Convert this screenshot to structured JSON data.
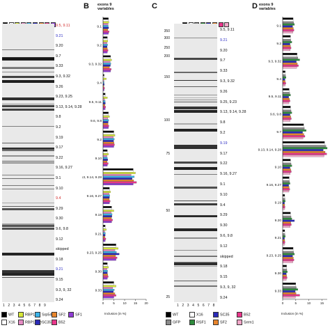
{
  "panels": {
    "A_letter": "",
    "B_letter": "B",
    "C_letter": "C",
    "D_letter": "D"
  },
  "colors": {
    "WT": "#000000",
    "X16": "#ffffff",
    "RBP1": "#d7e83a",
    "RBP1-like": "#e58cc4",
    "Srp54": "#3bb3e8",
    "SC35": "#2a2ab8",
    "SF2": "#e8852c",
    "B52": "#e8358a",
    "SF1": "#8f3cd4",
    "GFP": "#8a8a8a",
    "RSF1": "#2e8b3c",
    "Srrm1": "#f2a6c8"
  },
  "panelA": {
    "lane_numbers": "1 2 3 4 5 6 7 8 9",
    "header_labels": [
      "WT",
      "X16",
      "RBP1",
      "RBP1-like",
      "Srp54",
      "SC35",
      "SF2",
      "B52",
      "SF1"
    ],
    "exon_labels": [
      {
        "text": "9.5, 9.11",
        "color": "red"
      },
      {
        "text": "9.21",
        "color": "blue"
      },
      {
        "text": "9.20",
        "color": "black"
      },
      {
        "text": "9.7",
        "color": "black"
      },
      {
        "text": "9.33",
        "color": "black"
      },
      {
        "text": "9.3, 9.32",
        "color": "black"
      },
      {
        "text": "9.26",
        "color": "black"
      },
      {
        "text": "9.23, 9.25",
        "color": "black"
      },
      {
        "text": "9.13, 9.14, 9.28",
        "color": "black"
      },
      {
        "text": "9.8",
        "color": "black"
      },
      {
        "text": "9.2",
        "color": "black"
      },
      {
        "text": "9.19",
        "color": "black"
      },
      {
        "text": "9.17",
        "color": "black"
      },
      {
        "text": "9.22",
        "color": "black"
      },
      {
        "text": "9.16, 9.27",
        "color": "black"
      },
      {
        "text": "9.1",
        "color": "black"
      },
      {
        "text": "9.10",
        "color": "black"
      },
      {
        "text": "9.4",
        "color": "red"
      },
      {
        "text": "9.29",
        "color": "black"
      },
      {
        "text": "9.30",
        "color": "black"
      },
      {
        "text": "9.6, 9.8",
        "color": "black"
      },
      {
        "text": "9.12",
        "color": "black"
      },
      {
        "text": "skipped",
        "color": "black"
      },
      {
        "text": "9.18",
        "color": "black"
      },
      {
        "text": "9.21",
        "color": "blue"
      },
      {
        "text": "9.15",
        "color": "black"
      },
      {
        "text": "9.3, 9, 32",
        "color": "black"
      },
      {
        "text": "9.24",
        "color": "black"
      }
    ]
  },
  "panelB": {
    "header": "exons 9\nvariables",
    "row_labels": [
      "9.1",
      "9.2",
      "9.3, 9.32",
      "9.4",
      "9.5, 9.11",
      "9.6, 9.8",
      "9.2",
      "9.10",
      "9.13, 9.14, 9.28",
      "9.16, 9.27",
      "9.18",
      "9.21",
      "9.23, 9.25",
      "9.30",
      "9.33"
    ],
    "axis_title": "Inclusion (in %)",
    "ticks": [
      "0",
      "5",
      "10",
      "15",
      "20"
    ]
  },
  "panelC": {
    "lane_numbers": "1 2 3 4 5 6 7 8",
    "header_labels": [
      "M",
      "WT",
      "X16",
      "GFP",
      "RSF1",
      "SC35",
      "SF2",
      "B52",
      "Srrm1"
    ],
    "mw_markers": [
      "350",
      "300",
      "250",
      "200",
      "150",
      "100",
      "75",
      "50",
      "25"
    ],
    "exon_labels": [
      {
        "text": "9.5, 9.11",
        "color": "black"
      },
      {
        "text": "9.21",
        "color": "blue"
      },
      {
        "text": "9.20",
        "color": "black"
      },
      {
        "text": "9.7",
        "color": "black"
      },
      {
        "text": "9.33",
        "color": "black"
      },
      {
        "text": "9.3, 9.32",
        "color": "black"
      },
      {
        "text": "9.26",
        "color": "black"
      },
      {
        "text": "9.25, 9.23",
        "color": "black"
      },
      {
        "text": "9.13, 9.14, 9.28",
        "color": "black"
      },
      {
        "text": "9.8",
        "color": "black"
      },
      {
        "text": "9.2",
        "color": "black"
      },
      {
        "text": "9.19",
        "color": "blue"
      },
      {
        "text": "9.17",
        "color": "black"
      },
      {
        "text": "9.22",
        "color": "black"
      },
      {
        "text": "9.16, 9.27",
        "color": "black"
      },
      {
        "text": "9.1",
        "color": "black"
      },
      {
        "text": "9.10",
        "color": "black"
      },
      {
        "text": "9.4",
        "color": "black"
      },
      {
        "text": "9.29",
        "color": "black"
      },
      {
        "text": "9.30",
        "color": "black"
      },
      {
        "text": "9.6, 9.8",
        "color": "black"
      },
      {
        "text": "9.12",
        "color": "black"
      },
      {
        "text": "skipped",
        "color": "black"
      },
      {
        "text": "9.18",
        "color": "black"
      },
      {
        "text": "9.15",
        "color": "black"
      },
      {
        "text": "9.3, 9, 32",
        "color": "black"
      },
      {
        "text": "9.24",
        "color": "black"
      }
    ]
  },
  "panelD": {
    "header": "exons 9\nvariables",
    "row_labels": [
      "9.1",
      "9.2",
      "9.3, 9.32",
      "9.4",
      "9.5, 9.11",
      "9.6, 9.8",
      "9.7",
      "9.13, 9.14, 9.28",
      "9.10",
      "9.16, 9.27",
      "9.19",
      "9.20",
      "9.21",
      "9.23, 9.25",
      "9.30",
      "9.33"
    ],
    "axis_title": "Inclusion (in %)",
    "ticks": [
      "0",
      "5",
      "10",
      "15"
    ]
  },
  "legendA": [
    {
      "name": "WT",
      "color": "#000000"
    },
    {
      "name": "RBP1",
      "color": "#d7e83a"
    },
    {
      "name": "Srp54",
      "color": "#3bb3e8"
    },
    {
      "name": "SF2",
      "color": "#e8852c"
    },
    {
      "name": "SF1",
      "color": "#8f3cd4"
    },
    {
      "name": "X16",
      "color": "#ffffff"
    },
    {
      "name": "RBP1-like",
      "color": "#e58cc4"
    },
    {
      "name": "SC35",
      "color": "#2a2ab8"
    },
    {
      "name": "B52",
      "color": "#e8358a"
    }
  ],
  "legendC": [
    {
      "name": "WT",
      "color": "#000000"
    },
    {
      "name": "X16",
      "color": "#ffffff"
    },
    {
      "name": "SC35",
      "color": "#2a2ab8"
    },
    {
      "name": "B52",
      "color": "#e8358a"
    },
    {
      "name": "GFP",
      "color": "#8a8a8a"
    },
    {
      "name": "RSF1",
      "color": "#2e8b3c"
    },
    {
      "name": "SF2",
      "color": "#e8852c"
    },
    {
      "name": "Srrm1",
      "color": "#f2a6c8"
    }
  ],
  "chart_data": [
    {
      "type": "bar",
      "title": "",
      "xlabel": "Inclusion (in %)",
      "ylabel": "exons 9 variables",
      "xlim": [
        0,
        20
      ],
      "categories": [
        "9.1",
        "9.2",
        "9.3, 9.32",
        "9.4",
        "9.5, 9.11",
        "9.6, 9.8",
        "9.2",
        "9.10",
        "9.13, 9.14, 9.28",
        "9.16, 9.27",
        "9.18",
        "9.21",
        "9.23, 9.25",
        "9.30",
        "9.33"
      ],
      "series": [
        {
          "name": "WT",
          "values": [
            2.5,
            2,
            3.5,
            0.5,
            1,
            2.5,
            5,
            2,
            14,
            3,
            4,
            1,
            6,
            2,
            5
          ]
        },
        {
          "name": "X16",
          "values": [
            2.5,
            2,
            3.5,
            0.5,
            1,
            2.5,
            5,
            2,
            14,
            3,
            4,
            1,
            6,
            2,
            5
          ]
        },
        {
          "name": "RBP1",
          "values": [
            2.7,
            2.2,
            4,
            1.5,
            2,
            3,
            5.5,
            2.5,
            15,
            3.5,
            5,
            1.5,
            7,
            2.5,
            6
          ]
        },
        {
          "name": "RBP1-like",
          "values": [
            2.3,
            1.8,
            3.3,
            0.4,
            0.8,
            2.2,
            4.8,
            1.8,
            13,
            2.8,
            3.8,
            0.8,
            5.5,
            1.8,
            4.5
          ]
        },
        {
          "name": "Srp54",
          "values": [
            2.4,
            2.1,
            3.6,
            0.5,
            1,
            2.6,
            5.2,
            2,
            14.5,
            3.1,
            4.2,
            1.1,
            6.2,
            2.1,
            5.2
          ]
        },
        {
          "name": "SC35",
          "values": [
            2.6,
            1.9,
            3.4,
            0.6,
            1.1,
            2.4,
            4.9,
            2.2,
            13.5,
            3,
            4.1,
            1,
            7.5,
            2,
            4.8
          ]
        },
        {
          "name": "SF2",
          "values": [
            2.2,
            2,
            3,
            0.4,
            0.9,
            2.3,
            5.1,
            1.9,
            14.2,
            2.9,
            3.9,
            0.9,
            5.8,
            2.2,
            5.5
          ]
        },
        {
          "name": "B52",
          "values": [
            2.8,
            2.3,
            3.8,
            0.7,
            1.2,
            2.7,
            5.3,
            2.4,
            15.5,
            3.3,
            4.4,
            1.3,
            6.5,
            2.4,
            6
          ]
        },
        {
          "name": "SF1",
          "values": [
            2.5,
            2,
            3.5,
            0.5,
            1,
            2.5,
            5,
            2,
            14,
            3,
            4,
            1,
            6,
            2,
            5
          ]
        }
      ]
    },
    {
      "type": "bar",
      "title": "",
      "xlabel": "Inclusion (in %)",
      "ylabel": "exons 9 variables",
      "xlim": [
        0,
        17
      ],
      "categories": [
        "9.1",
        "9.2",
        "9.3, 9.32",
        "9.4",
        "9.5, 9.11",
        "9.6, 9.8",
        "9.7",
        "9.13, 9.14, 9.28",
        "9.10",
        "9.16, 9.27",
        "9.19",
        "9.20",
        "9.21",
        "9.23, 9.25",
        "9.30",
        "9.33"
      ],
      "series": [
        {
          "name": "WT",
          "values": [
            4,
            3,
            5.5,
            1,
            2.5,
            3,
            8,
            16,
            3,
            2.5,
            0.8,
            3,
            0.8,
            4,
            1.5,
            5
          ]
        },
        {
          "name": "X16",
          "values": [
            4,
            3,
            5.5,
            1,
            2.5,
            3,
            8,
            16,
            3,
            2.5,
            0.8,
            3,
            0.8,
            4,
            1.5,
            5
          ]
        },
        {
          "name": "GFP",
          "values": [
            4.2,
            3.1,
            5.8,
            1.1,
            2.7,
            3.2,
            8.3,
            16.5,
            3.2,
            2.6,
            0.9,
            3.2,
            0.9,
            4.2,
            1.6,
            5.2
          ]
        },
        {
          "name": "RSF1",
          "values": [
            4.5,
            3.5,
            6.5,
            1.3,
            3,
            3.5,
            9,
            17,
            3.5,
            2.8,
            1,
            3.5,
            1,
            4.5,
            1.8,
            5.8
          ]
        },
        {
          "name": "SC35",
          "values": [
            3.8,
            2.8,
            5.2,
            0.9,
            2.3,
            2.8,
            7.6,
            15.5,
            2.8,
            2.3,
            0.7,
            4.5,
            0.7,
            3.8,
            1.4,
            4.8
          ]
        },
        {
          "name": "SF2",
          "values": [
            4.1,
            3,
            5.6,
            1,
            2.6,
            3.1,
            8.1,
            16.2,
            3.1,
            2.5,
            0.8,
            3.1,
            0.8,
            4.1,
            1.5,
            5.1
          ]
        },
        {
          "name": "B52",
          "values": [
            4.3,
            3.2,
            6,
            1.2,
            2.8,
            3.3,
            8.5,
            16.8,
            3.3,
            2.7,
            0.9,
            3.3,
            0.9,
            4.3,
            1.7,
            6.5
          ]
        },
        {
          "name": "Srrm1",
          "values": [
            3.9,
            2.9,
            5.4,
            1,
            2.4,
            2.9,
            7.8,
            15.8,
            2.9,
            2.4,
            0.8,
            2.9,
            0.8,
            3.9,
            1.4,
            4.9
          ]
        }
      ]
    }
  ]
}
